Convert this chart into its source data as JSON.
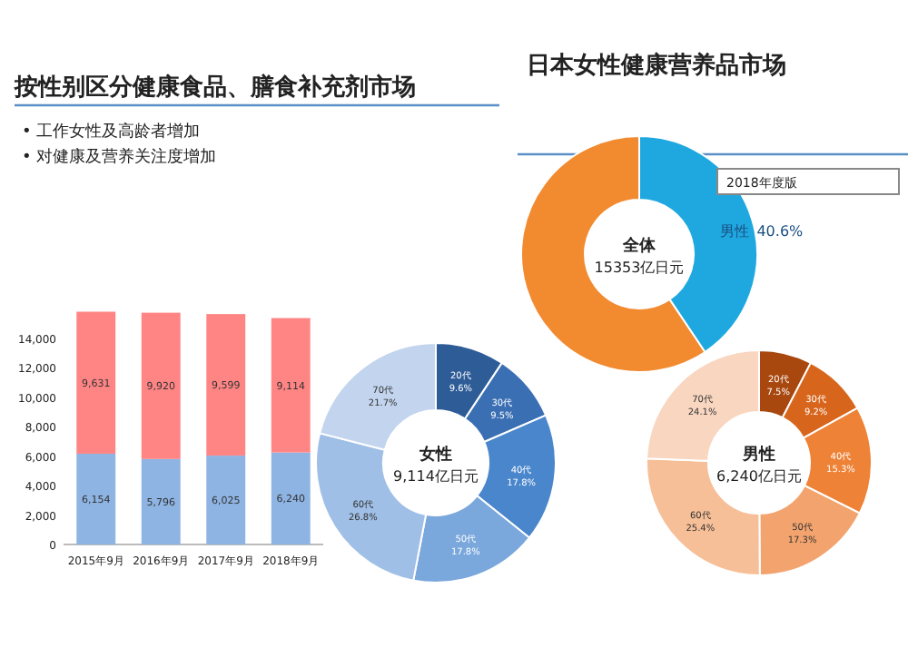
{
  "chart_data": [
    {
      "type": "bar",
      "stacked": true,
      "title": "按性别区分健康食品、膳食补充剂市场",
      "annotations": [
        "• 工作女性及高龄者增加",
        "• 对健康及营养关注度增加"
      ],
      "categories": [
        "2015年9月",
        "2016年9月",
        "2017年9月",
        "2018年9月"
      ],
      "series": [
        {
          "color": "#8eb4e3",
          "values": [
            6154,
            5796,
            6025,
            6240
          ],
          "value_labels": [
            "6,154",
            "5,796",
            "6,025",
            "6,240"
          ]
        },
        {
          "color": "#ff8585",
          "values": [
            9631,
            9920,
            9599,
            9114
          ],
          "value_labels": [
            "9,631",
            "9,920",
            "9,599",
            "9,114"
          ]
        }
      ],
      "ylim": [
        0,
        16000
      ],
      "yticks": [
        0,
        {
          "value": 2000,
          "label": "2,000"
        },
        {
          "value": 4000,
          "label": "4,000"
        },
        {
          "value": 6000,
          "label": "6,000"
        },
        {
          "value": 8000,
          "label": "8,000"
        },
        {
          "value": 10000,
          "label": "10,000"
        },
        {
          "value": 12000,
          "label": "12,000"
        },
        {
          "value": 14000,
          "label": "14,000"
        }
      ]
    },
    {
      "type": "donut",
      "title": "日本女性健康营养品市场",
      "categories": [
        "男性",
        null
      ],
      "values": [
        40.6,
        59.4
      ],
      "colors": [
        "#1fa8e0",
        "#f28a30"
      ],
      "value_labels": [
        "40.6%",
        null
      ],
      "annotations": [
        "全体",
        "15353亿日元",
        "2018年度版"
      ]
    },
    {
      "type": "donut",
      "categories": [
        "20代",
        "30代",
        "40代",
        "50代",
        "60代",
        "70代"
      ],
      "values": [
        9.6,
        9.5,
        17.8,
        17.8,
        26.8,
        21.7
      ],
      "colors": [
        "#2e5c96",
        "#3a6fb3",
        "#4a86cc",
        "#7aa7dc",
        "#9fbfe6",
        "#c3d5ee"
      ],
      "value_labels": [
        "9.6%",
        "9.5%",
        "17.8%",
        "17.8%",
        "26.8%",
        "21.7%"
      ],
      "annotations": [
        "女性",
        "9,114亿日元"
      ]
    },
    {
      "type": "donut",
      "categories": [
        "20代",
        "30代",
        "40代",
        "50代",
        "60代",
        "70代"
      ],
      "values": [
        7.5,
        9.2,
        15.3,
        17.3,
        25.4,
        24.1
      ],
      "colors": [
        "#a8480f",
        "#d8651c",
        "#ee8236",
        "#f3a46e",
        "#f6bf98",
        "#f8d6c0"
      ],
      "value_labels": [
        "7.5%",
        "9.2%",
        "15.3%",
        "17.3%",
        "25.4%",
        "24.1%"
      ],
      "annotations": [
        "男性",
        "6,240亿日元"
      ]
    }
  ]
}
